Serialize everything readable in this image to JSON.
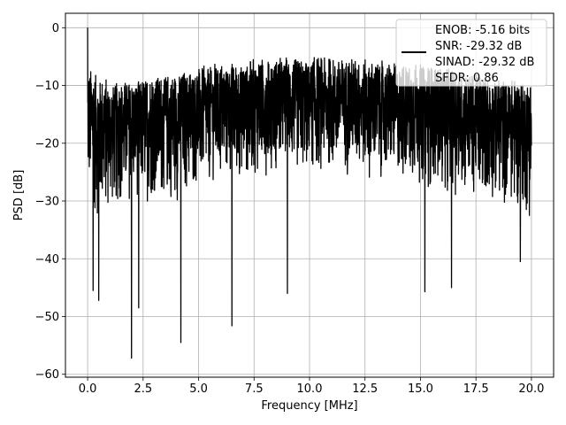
{
  "chart_data": {
    "type": "line",
    "title": "",
    "xlabel": "Frequency [MHz]",
    "ylabel": "PSD [dB]",
    "xlim": [
      -1.0,
      21.0
    ],
    "ylim": [
      -60.5,
      2.5
    ],
    "xticks": [
      0.0,
      2.5,
      5.0,
      7.5,
      10.0,
      12.5,
      15.0,
      17.5,
      20.0
    ],
    "xtick_labels": [
      "0.0",
      "2.5",
      "5.0",
      "7.5",
      "10.0",
      "12.5",
      "15.0",
      "17.5",
      "20.0"
    ],
    "yticks": [
      0,
      -10,
      -20,
      -30,
      -40,
      -50,
      -60
    ],
    "ytick_labels": [
      "0",
      "−10",
      "−20",
      "−30",
      "−40",
      "−50",
      "−60"
    ],
    "grid": true,
    "legend_position": "top-right",
    "legend_entries": [
      "ENOB: -5.16 bits",
      "SNR: -29.32 dB",
      "SINAD: -29.32 dB",
      "SFDR: 0.86"
    ],
    "series": [
      {
        "color": "#000000",
        "x_range": [
          0.0,
          20.0
        ],
        "dense_noise_band": {
          "upper_envelope_x": [
            0,
            0.5,
            1,
            2,
            3,
            4,
            5,
            6,
            7,
            8,
            9,
            10,
            11,
            12,
            13,
            14,
            15,
            16,
            17,
            18,
            19,
            20
          ],
          "upper_envelope_y": [
            -6,
            -8,
            -9,
            -9,
            -8,
            -7.5,
            -6.5,
            -6,
            -5.5,
            -5,
            -5,
            -5,
            -5,
            -5,
            -5.5,
            -6,
            -6,
            -6.5,
            -7,
            -8,
            -8.5,
            -9
          ],
          "lower_envelope_x": [
            0,
            0.5,
            1,
            2,
            3,
            4,
            5,
            6,
            7,
            8,
            9,
            10,
            11,
            12,
            13,
            14,
            15,
            16,
            17,
            18,
            19,
            20
          ],
          "lower_envelope_y": [
            -30,
            -34,
            -32,
            -30,
            -30,
            -30,
            -28,
            -27,
            -26,
            -25,
            -25,
            -25,
            -25,
            -25,
            -26,
            -26,
            -27,
            -28,
            -29,
            -30,
            -31,
            -33
          ]
        },
        "peaks": [
          {
            "x": 0.0,
            "y": 0.0
          }
        ],
        "notable_dips": [
          {
            "x": 0.25,
            "y": -45.5
          },
          {
            "x": 0.5,
            "y": -47.2
          },
          {
            "x": 1.98,
            "y": -57.2
          },
          {
            "x": 2.3,
            "y": -48.5
          },
          {
            "x": 4.2,
            "y": -54.5
          },
          {
            "x": 6.5,
            "y": -51.6
          },
          {
            "x": 9.0,
            "y": -46.0
          },
          {
            "x": 15.2,
            "y": -45.7
          },
          {
            "x": 16.4,
            "y": -45.0
          },
          {
            "x": 19.5,
            "y": -40.5
          }
        ]
      }
    ]
  }
}
